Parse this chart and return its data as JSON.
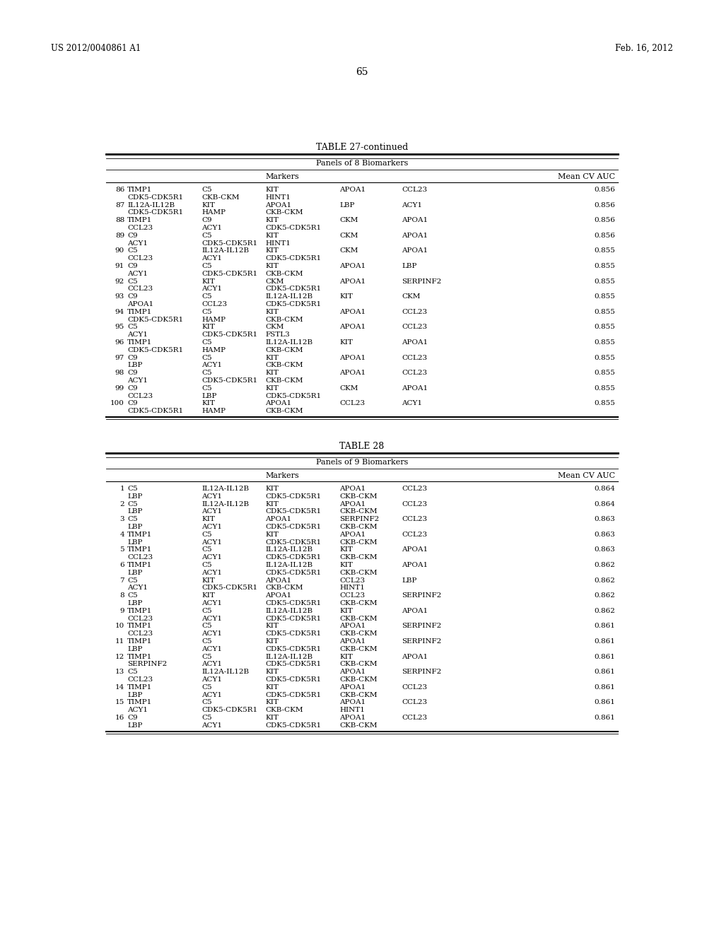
{
  "page_header_left": "US 2012/0040861 A1",
  "page_header_right": "Feb. 16, 2012",
  "page_number": "65",
  "table27_title": "TABLE 27-continued",
  "table27_subtitle": "Panels of 8 Biomarkers",
  "table28_title": "TABLE 28",
  "table28_subtitle": "Panels of 9 Biomarkers",
  "table27_rows": [
    [
      "86",
      "TIMP1",
      "C5",
      "KIT",
      "APOA1",
      "CCL23",
      "0.856"
    ],
    [
      "",
      "CDK5-CDK5R1",
      "CKB-CKM",
      "HINT1",
      "",
      "",
      ""
    ],
    [
      "87",
      "IL12A-IL12B",
      "KIT",
      "APOA1",
      "LBP",
      "ACY1",
      "0.856"
    ],
    [
      "",
      "CDK5-CDK5R1",
      "HAMP",
      "CKB-CKM",
      "",
      "",
      ""
    ],
    [
      "88",
      "TIMP1",
      "C9",
      "KIT",
      "CKM",
      "APOA1",
      "0.856"
    ],
    [
      "",
      "CCL23",
      "ACY1",
      "CDK5-CDK5R1",
      "",
      "",
      ""
    ],
    [
      "89",
      "C9",
      "C5",
      "KIT",
      "CKM",
      "APOA1",
      "0.856"
    ],
    [
      "",
      "ACY1",
      "CDK5-CDK5R1",
      "HINT1",
      "",
      "",
      ""
    ],
    [
      "90",
      "C5",
      "IL12A-IL12B",
      "KIT",
      "CKM",
      "APOA1",
      "0.855"
    ],
    [
      "",
      "CCL23",
      "ACY1",
      "CDK5-CDK5R1",
      "",
      "",
      ""
    ],
    [
      "91",
      "C9",
      "C5",
      "KIT",
      "APOA1",
      "LBP",
      "0.855"
    ],
    [
      "",
      "ACY1",
      "CDK5-CDK5R1",
      "CKB-CKM",
      "",
      "",
      ""
    ],
    [
      "92",
      "C5",
      "KIT",
      "CKM",
      "APOA1",
      "SERPINF2",
      "0.855"
    ],
    [
      "",
      "CCL23",
      "ACY1",
      "CDK5-CDK5R1",
      "",
      "",
      ""
    ],
    [
      "93",
      "C9",
      "C5",
      "IL12A-IL12B",
      "KIT",
      "CKM",
      "0.855"
    ],
    [
      "",
      "APOA1",
      "CCL23",
      "CDK5-CDK5R1",
      "",
      "",
      ""
    ],
    [
      "94",
      "TIMP1",
      "C5",
      "KIT",
      "APOA1",
      "CCL23",
      "0.855"
    ],
    [
      "",
      "CDK5-CDK5R1",
      "HAMP",
      "CKB-CKM",
      "",
      "",
      ""
    ],
    [
      "95",
      "C5",
      "KIT",
      "CKM",
      "APOA1",
      "CCL23",
      "0.855"
    ],
    [
      "",
      "ACY1",
      "CDK5-CDK5R1",
      "FSTL3",
      "",
      "",
      ""
    ],
    [
      "96",
      "TIMP1",
      "C5",
      "IL12A-IL12B",
      "KIT",
      "APOA1",
      "0.855"
    ],
    [
      "",
      "CDK5-CDK5R1",
      "HAMP",
      "CKB-CKM",
      "",
      "",
      ""
    ],
    [
      "97",
      "C9",
      "C5",
      "KIT",
      "APOA1",
      "CCL23",
      "0.855"
    ],
    [
      "",
      "LBP",
      "ACY1",
      "CKB-CKM",
      "",
      "",
      ""
    ],
    [
      "98",
      "C9",
      "C5",
      "KIT",
      "APOA1",
      "CCL23",
      "0.855"
    ],
    [
      "",
      "ACY1",
      "CDK5-CDK5R1",
      "CKB-CKM",
      "",
      "",
      ""
    ],
    [
      "99",
      "C9",
      "C5",
      "KIT",
      "CKM",
      "APOA1",
      "0.855"
    ],
    [
      "",
      "CCL23",
      "LBP",
      "CDK5-CDK5R1",
      "",
      "",
      ""
    ],
    [
      "100",
      "C9",
      "KIT",
      "APOA1",
      "CCL23",
      "ACY1",
      "0.855"
    ],
    [
      "",
      "CDK5-CDK5R1",
      "HAMP",
      "CKB-CKM",
      "",
      "",
      ""
    ]
  ],
  "table28_rows": [
    [
      "1",
      "C5",
      "IL12A-IL12B",
      "KIT",
      "APOA1",
      "CCL23",
      "0.864"
    ],
    [
      "",
      "LBP",
      "ACY1",
      "CDK5-CDK5R1",
      "CKB-CKM",
      "",
      ""
    ],
    [
      "2",
      "C5",
      "IL12A-IL12B",
      "KIT",
      "APOA1",
      "CCL23",
      "0.864"
    ],
    [
      "",
      "LBP",
      "ACY1",
      "CDK5-CDK5R1",
      "CKB-CKM",
      "",
      ""
    ],
    [
      "3",
      "C5",
      "KIT",
      "APOA1",
      "SERPINF2",
      "CCL23",
      "0.863"
    ],
    [
      "",
      "LBP",
      "ACY1",
      "CDK5-CDK5R1",
      "CKB-CKM",
      "",
      ""
    ],
    [
      "4",
      "TIMP1",
      "C5",
      "KIT",
      "APOA1",
      "CCL23",
      "0.863"
    ],
    [
      "",
      "LBP",
      "ACY1",
      "CDK5-CDK5R1",
      "CKB-CKM",
      "",
      ""
    ],
    [
      "5",
      "TIMP1",
      "C5",
      "IL12A-IL12B",
      "KIT",
      "APOA1",
      "0.863"
    ],
    [
      "",
      "CCL23",
      "ACY1",
      "CDK5-CDK5R1",
      "CKB-CKM",
      "",
      ""
    ],
    [
      "6",
      "TIMP1",
      "C5",
      "IL12A-IL12B",
      "KIT",
      "APOA1",
      "0.862"
    ],
    [
      "",
      "LBP",
      "ACY1",
      "CDK5-CDK5R1",
      "CKB-CKM",
      "",
      ""
    ],
    [
      "7",
      "C5",
      "KIT",
      "APOA1",
      "CCL23",
      "LBP",
      "0.862"
    ],
    [
      "",
      "ACY1",
      "CDK5-CDK5R1",
      "CKB-CKM",
      "HINT1",
      "",
      ""
    ],
    [
      "8",
      "C5",
      "KIT",
      "APOA1",
      "CCL23",
      "SERPINF2",
      "0.862"
    ],
    [
      "",
      "LBP",
      "ACY1",
      "CDK5-CDK5R1",
      "CKB-CKM",
      "",
      ""
    ],
    [
      "9",
      "TIMP1",
      "C5",
      "IL12A-IL12B",
      "KIT",
      "APOA1",
      "0.862"
    ],
    [
      "",
      "CCL23",
      "ACY1",
      "CDK5-CDK5R1",
      "CKB-CKM",
      "",
      ""
    ],
    [
      "10",
      "TIMP1",
      "C5",
      "KIT",
      "APOA1",
      "SERPINF2",
      "0.861"
    ],
    [
      "",
      "CCL23",
      "ACY1",
      "CDK5-CDK5R1",
      "CKB-CKM",
      "",
      ""
    ],
    [
      "11",
      "TIMP1",
      "C5",
      "KIT",
      "APOA1",
      "SERPINF2",
      "0.861"
    ],
    [
      "",
      "LBP",
      "ACY1",
      "CDK5-CDK5R1",
      "CKB-CKM",
      "",
      ""
    ],
    [
      "12",
      "TIMP1",
      "C5",
      "IL12A-IL12B",
      "KIT",
      "APOA1",
      "0.861"
    ],
    [
      "",
      "SERPINF2",
      "ACY1",
      "CDK5-CDK5R1",
      "CKB-CKM",
      "",
      ""
    ],
    [
      "13",
      "C5",
      "IL12A-IL12B",
      "KIT",
      "APOA1",
      "SERPINF2",
      "0.861"
    ],
    [
      "",
      "CCL23",
      "ACY1",
      "CDK5-CDK5R1",
      "CKB-CKM",
      "",
      ""
    ],
    [
      "14",
      "TIMP1",
      "C5",
      "KIT",
      "APOA1",
      "CCL23",
      "0.861"
    ],
    [
      "",
      "LBP",
      "ACY1",
      "CDK5-CDK5R1",
      "CKB-CKM",
      "",
      ""
    ],
    [
      "15",
      "TIMP1",
      "C5",
      "KIT",
      "APOA1",
      "CCL23",
      "0.861"
    ],
    [
      "",
      "ACY1",
      "CDK5-CDK5R1",
      "CKB-CKM",
      "HINT1",
      "",
      ""
    ],
    [
      "16",
      "C9",
      "C5",
      "KIT",
      "APOA1",
      "CCL23",
      "0.861"
    ],
    [
      "",
      "LBP",
      "ACY1",
      "CDK5-CDK5R1",
      "CKB-CKM",
      "",
      ""
    ]
  ],
  "bg_color": "#ffffff",
  "text_color": "#000000"
}
